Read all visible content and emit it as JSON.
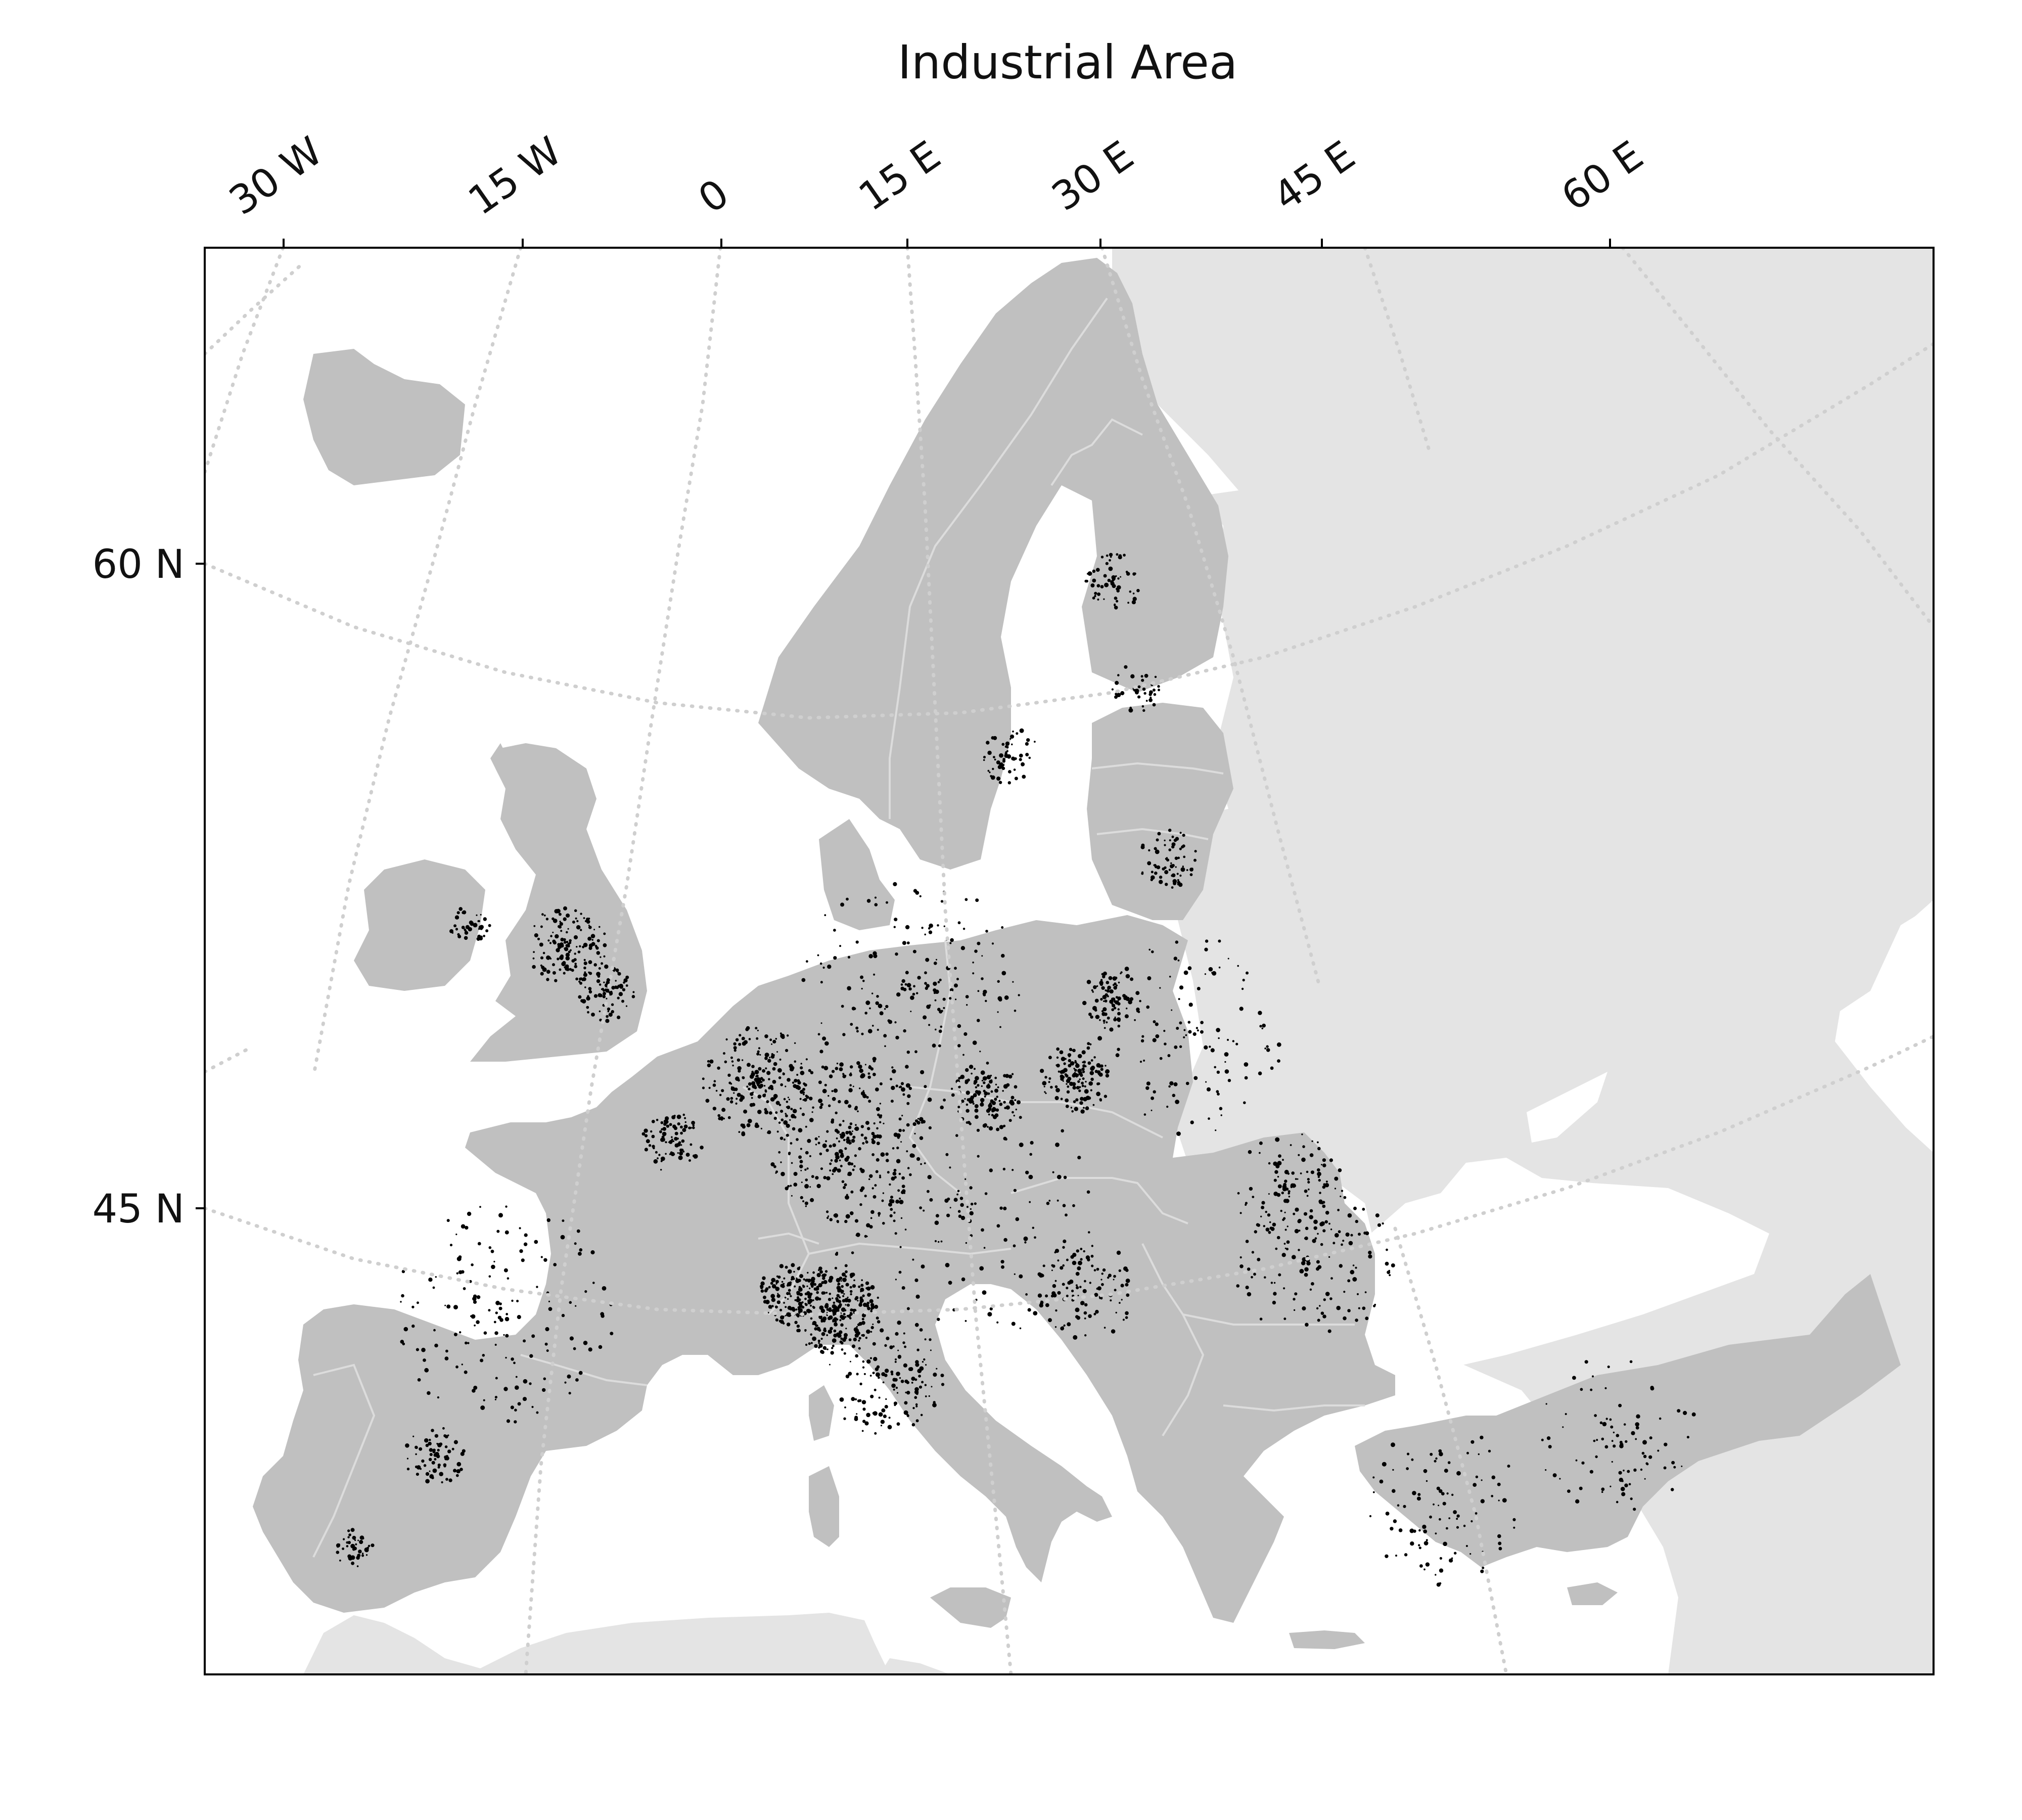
{
  "title": "Industrial Area",
  "longitude_labels": [
    "30 W",
    "15 W",
    "0",
    "15 E",
    "30 E",
    "45 E",
    "60 E"
  ],
  "latitude_labels": [
    "60 N",
    "45 N"
  ],
  "colors": {
    "land_in_scope": "#c0c0c0",
    "land_out_of_scope": "#e4e4e4",
    "ocean": "#ffffff",
    "industrial": "#000000",
    "graticule": "#cfcfcf",
    "borders": "#dcdcdc"
  }
}
